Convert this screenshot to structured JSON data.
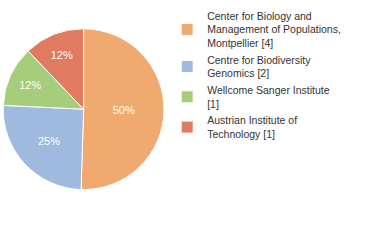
{
  "chart_data": {
    "type": "pie",
    "categories": [
      "Center for Biology and Management of Populations, Montpellier [4]",
      "Centre for Biodiversity Genomics [2]",
      "Wellcome Sanger Institute [1]",
      "Austrian Institute of Technology [1]"
    ],
    "values": [
      50,
      25,
      12,
      12
    ],
    "value_labels": [
      "50%",
      "25%",
      "12%",
      "12%"
    ],
    "colors": [
      "#f0aa6f",
      "#9fb9df",
      "#a6cd7b",
      "#e07b61"
    ],
    "data_labels": true,
    "legend": "upper right"
  }
}
